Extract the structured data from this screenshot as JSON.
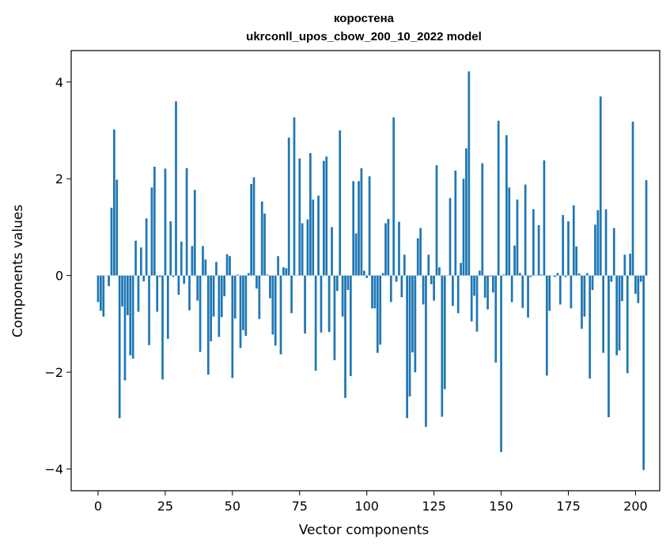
{
  "chart_data": {
    "type": "bar",
    "title": "коростена",
    "subtitle": "ukrconll_upos_cbow_200_10_2022 model",
    "xlabel": "Vector components",
    "ylabel": "Components values",
    "xlim": [
      -10,
      209
    ],
    "ylim": [
      -4.45,
      4.65
    ],
    "xticks": [
      0,
      25,
      50,
      75,
      100,
      125,
      150,
      175,
      200
    ],
    "xtick_labels": [
      "0",
      "25",
      "50",
      "75",
      "100",
      "125",
      "150",
      "175",
      "200"
    ],
    "yticks": [
      -4,
      -2,
      0,
      2,
      4
    ],
    "ytick_labels": [
      "−4",
      "−2",
      "0",
      "2",
      "4"
    ],
    "grid": false,
    "bar_color": "#1f77b4",
    "values": [
      -0.55,
      -0.73,
      -0.85,
      0.0,
      -0.22,
      1.4,
      3.02,
      1.98,
      -2.95,
      -0.64,
      -2.17,
      -0.82,
      -1.65,
      -1.72,
      0.72,
      -0.75,
      0.58,
      -0.12,
      1.18,
      -1.44,
      1.82,
      2.25,
      -0.75,
      -0.03,
      -2.15,
      2.21,
      -1.31,
      1.12,
      -0.03,
      3.6,
      -0.4,
      0.7,
      -0.17,
      2.22,
      -0.72,
      0.61,
      1.77,
      -0.52,
      -1.58,
      0.61,
      0.33,
      -2.05,
      -1.36,
      -0.85,
      0.28,
      -1.27,
      -0.86,
      -0.43,
      0.44,
      0.4,
      -2.12,
      -0.89,
      0.02,
      -1.5,
      -1.13,
      -1.25,
      0.05,
      1.89,
      2.03,
      -0.27,
      -0.9,
      1.53,
      1.28,
      0.02,
      -0.47,
      -1.22,
      -1.45,
      0.4,
      -1.63,
      0.17,
      0.15,
      2.85,
      -0.78,
      3.27,
      0.0,
      2.42,
      1.08,
      -1.2,
      1.16,
      2.53,
      1.57,
      -1.97,
      1.65,
      -1.18,
      2.37,
      2.46,
      -1.17,
      1.0,
      -1.75,
      -0.32,
      3.0,
      -0.85,
      -2.53,
      -0.3,
      -2.08,
      1.95,
      0.87,
      1.95,
      2.22,
      0.1,
      -0.05,
      2.05,
      -0.68,
      -0.68,
      -1.6,
      -1.43,
      0.05,
      1.08,
      1.17,
      -0.55,
      3.27,
      -0.13,
      1.11,
      -0.45,
      0.43,
      -2.95,
      -2.5,
      -1.59,
      -2.0,
      0.77,
      0.98,
      -0.6,
      -3.13,
      0.43,
      -0.18,
      -0.52,
      2.28,
      0.17,
      -2.92,
      -2.35,
      0.0,
      1.6,
      -0.63,
      2.17,
      -0.78,
      0.26,
      2.0,
      2.63,
      4.22,
      -0.95,
      -0.42,
      -1.16,
      0.1,
      2.32,
      -0.46,
      -0.7,
      -0.02,
      -0.35,
      -1.8,
      3.2,
      -3.65,
      0.02,
      2.9,
      1.82,
      -0.55,
      0.62,
      1.57,
      0.05,
      -0.67,
      1.88,
      -0.87,
      -0.03,
      1.37,
      0.0,
      1.04,
      0.02,
      2.38,
      -2.07,
      -0.73,
      0.0,
      -0.03,
      0.05,
      -0.6,
      1.25,
      -0.03,
      1.12,
      -0.68,
      1.45,
      0.6,
      0.04,
      -1.1,
      -0.85,
      0.05,
      -2.13,
      -0.3,
      1.05,
      1.35,
      3.7,
      -1.6,
      1.37,
      -2.93,
      -0.13,
      0.98,
      -1.65,
      -1.55,
      -0.53,
      0.43,
      -2.02,
      0.45,
      3.18,
      -0.38,
      -0.57,
      -0.13,
      -4.02,
      1.97
    ]
  }
}
